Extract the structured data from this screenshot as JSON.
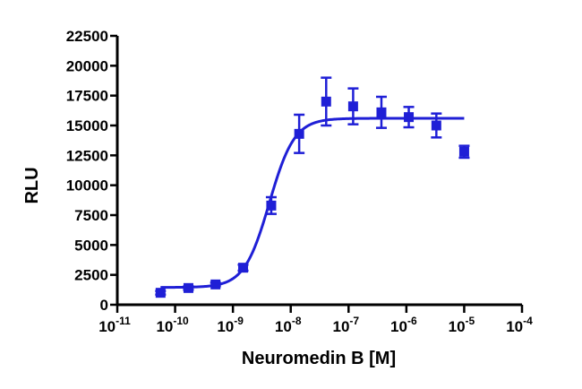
{
  "chart_data": {
    "type": "scatter",
    "xlabel": "Neuromedin B [M]",
    "ylabel": "RLU",
    "xscale": "log",
    "xlim": [
      1e-11,
      0.0001
    ],
    "ylim": [
      0,
      22500
    ],
    "x_tick_exponents": [
      "-11",
      "-10",
      "-9",
      "-8",
      "-7",
      "-6",
      "-5",
      "-4"
    ],
    "y_ticks": [
      0,
      2500,
      5000,
      7500,
      10000,
      12500,
      15000,
      17500,
      20000,
      22500
    ],
    "color": "#1f1fd6",
    "grid": false,
    "series": [
      {
        "marker": "square",
        "x": [
          5.6e-11,
          1.7e-10,
          5e-10,
          1.5e-09,
          4.6e-09,
          1.4e-08,
          4.1e-08,
          1.2e-07,
          3.7e-07,
          1.1e-06,
          3.3e-06,
          1e-05
        ],
        "y": [
          1000,
          1400,
          1700,
          3100,
          8300,
          14300,
          17000,
          16600,
          16100,
          15700,
          15000,
          12800
        ],
        "err": [
          150,
          150,
          150,
          250,
          700,
          1600,
          2000,
          1500,
          1300,
          850,
          1000,
          500
        ]
      }
    ],
    "fit": {
      "type": "sigmoidal dose-response",
      "bottom": 1450,
      "top": 15600,
      "log_ec50": -8.37,
      "hill_slope": 2.0,
      "x_range": [
        5.6e-11,
        1e-05
      ]
    }
  }
}
